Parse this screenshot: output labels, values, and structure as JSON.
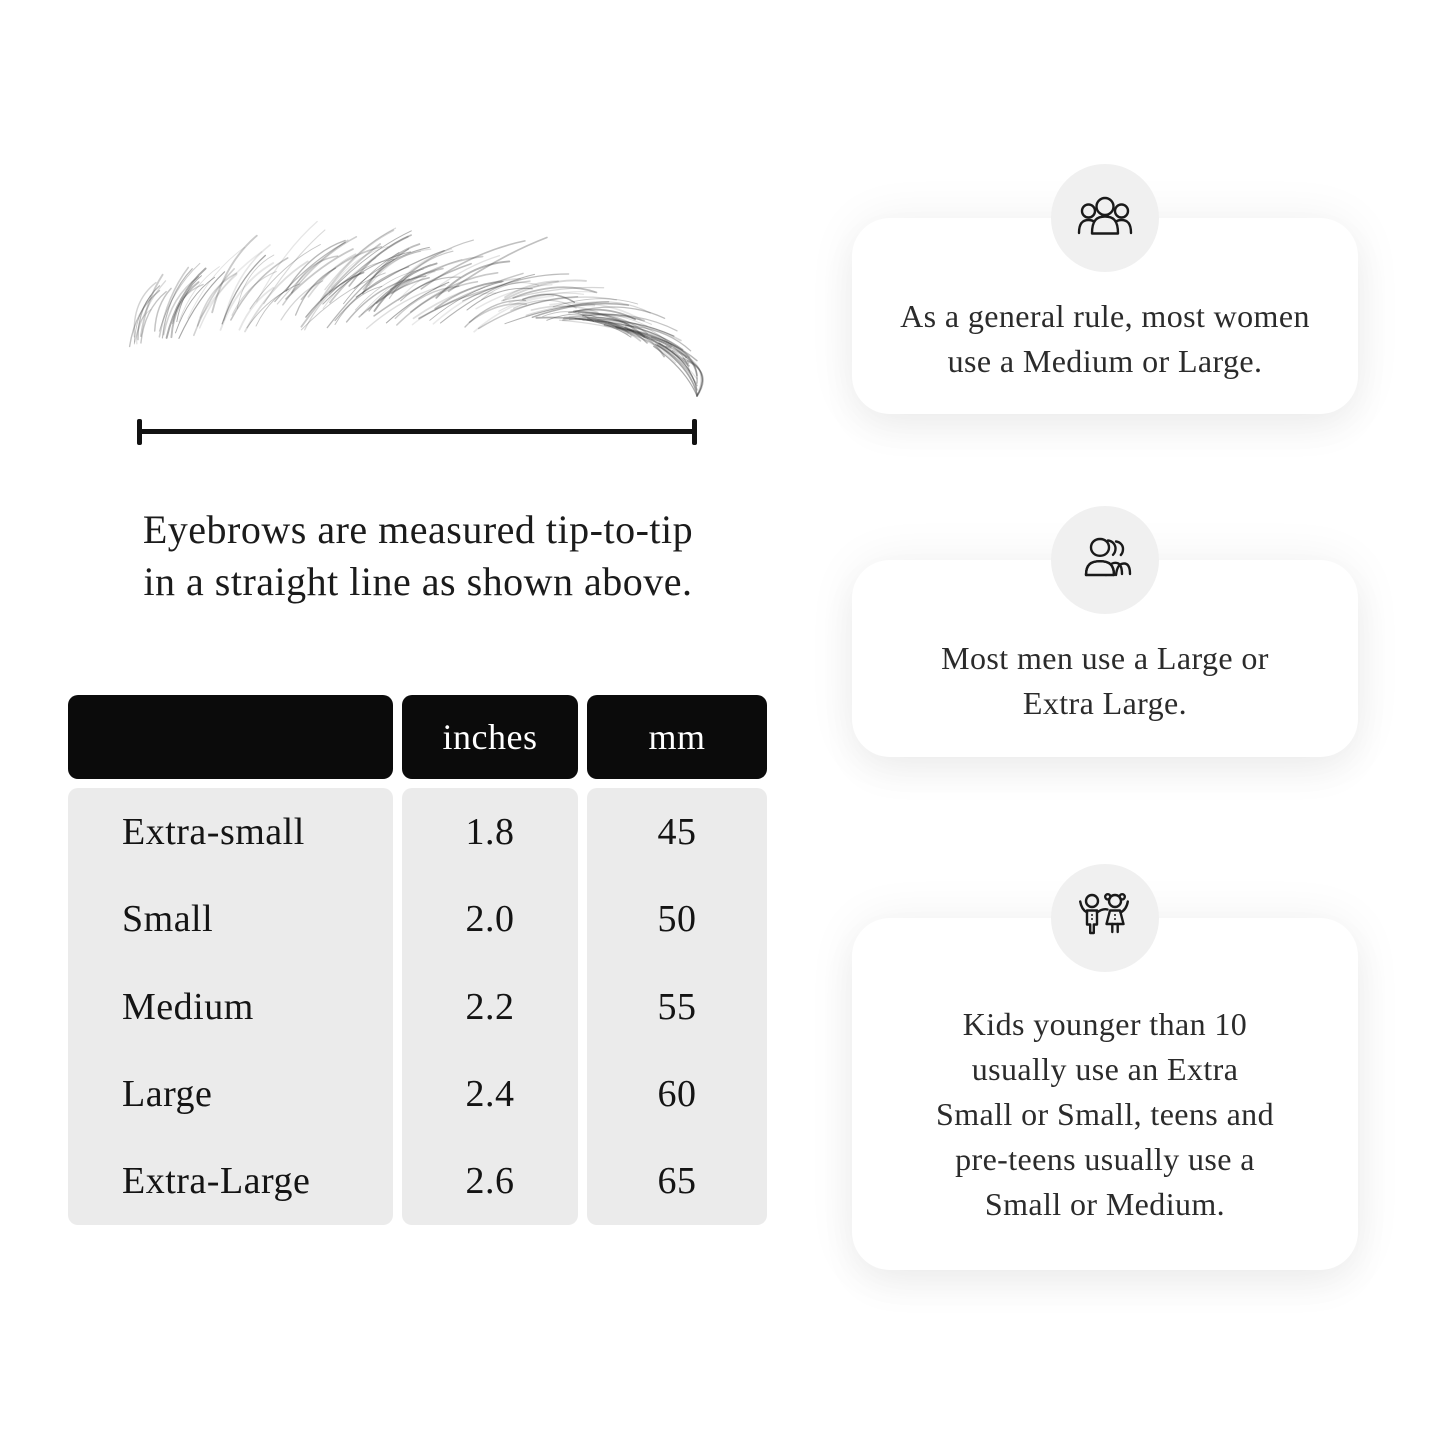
{
  "illustration": {
    "name": "eyebrow-sketch",
    "caption_lines": [
      "Eyebrows are measured tip-to-tip",
      "in a straight line as shown above."
    ]
  },
  "size_table": {
    "headers": {
      "size": "",
      "inches": "inches",
      "mm": "mm"
    },
    "rows": [
      {
        "size": "Extra-small",
        "inches": "1.8",
        "mm": "45"
      },
      {
        "size": "Small",
        "inches": "2.0",
        "mm": "50"
      },
      {
        "size": "Medium",
        "inches": "2.2",
        "mm": "55"
      },
      {
        "size": "Large",
        "inches": "2.4",
        "mm": "60"
      },
      {
        "size": "Extra-Large",
        "inches": "2.6",
        "mm": "65"
      }
    ],
    "colors": {
      "header_bg": "#0b0b0b",
      "header_text": "#ffffff",
      "body_bg": "#ebebeb"
    }
  },
  "cards": [
    {
      "icon": "women-group-icon",
      "lines": [
        "As a general rule, most women",
        "use a Medium or Large."
      ]
    },
    {
      "icon": "men-group-icon",
      "lines": [
        "Most men use a Large or",
        "Extra Large."
      ]
    },
    {
      "icon": "kids-icon",
      "lines": [
        "Kids younger than 10",
        "usually use an Extra",
        "Small or Small, teens and",
        "pre-teens usually use a",
        "Small or Medium."
      ]
    }
  ],
  "chart_data": {
    "type": "table",
    "columns": [
      "",
      "inches",
      "mm"
    ],
    "rows": [
      [
        "Extra-small",
        "1.8",
        "45"
      ],
      [
        "Small",
        "2.0",
        "50"
      ],
      [
        "Medium",
        "2.2",
        "55"
      ],
      [
        "Large",
        "2.4",
        "60"
      ],
      [
        "Extra-Large",
        "2.6",
        "65"
      ]
    ]
  }
}
